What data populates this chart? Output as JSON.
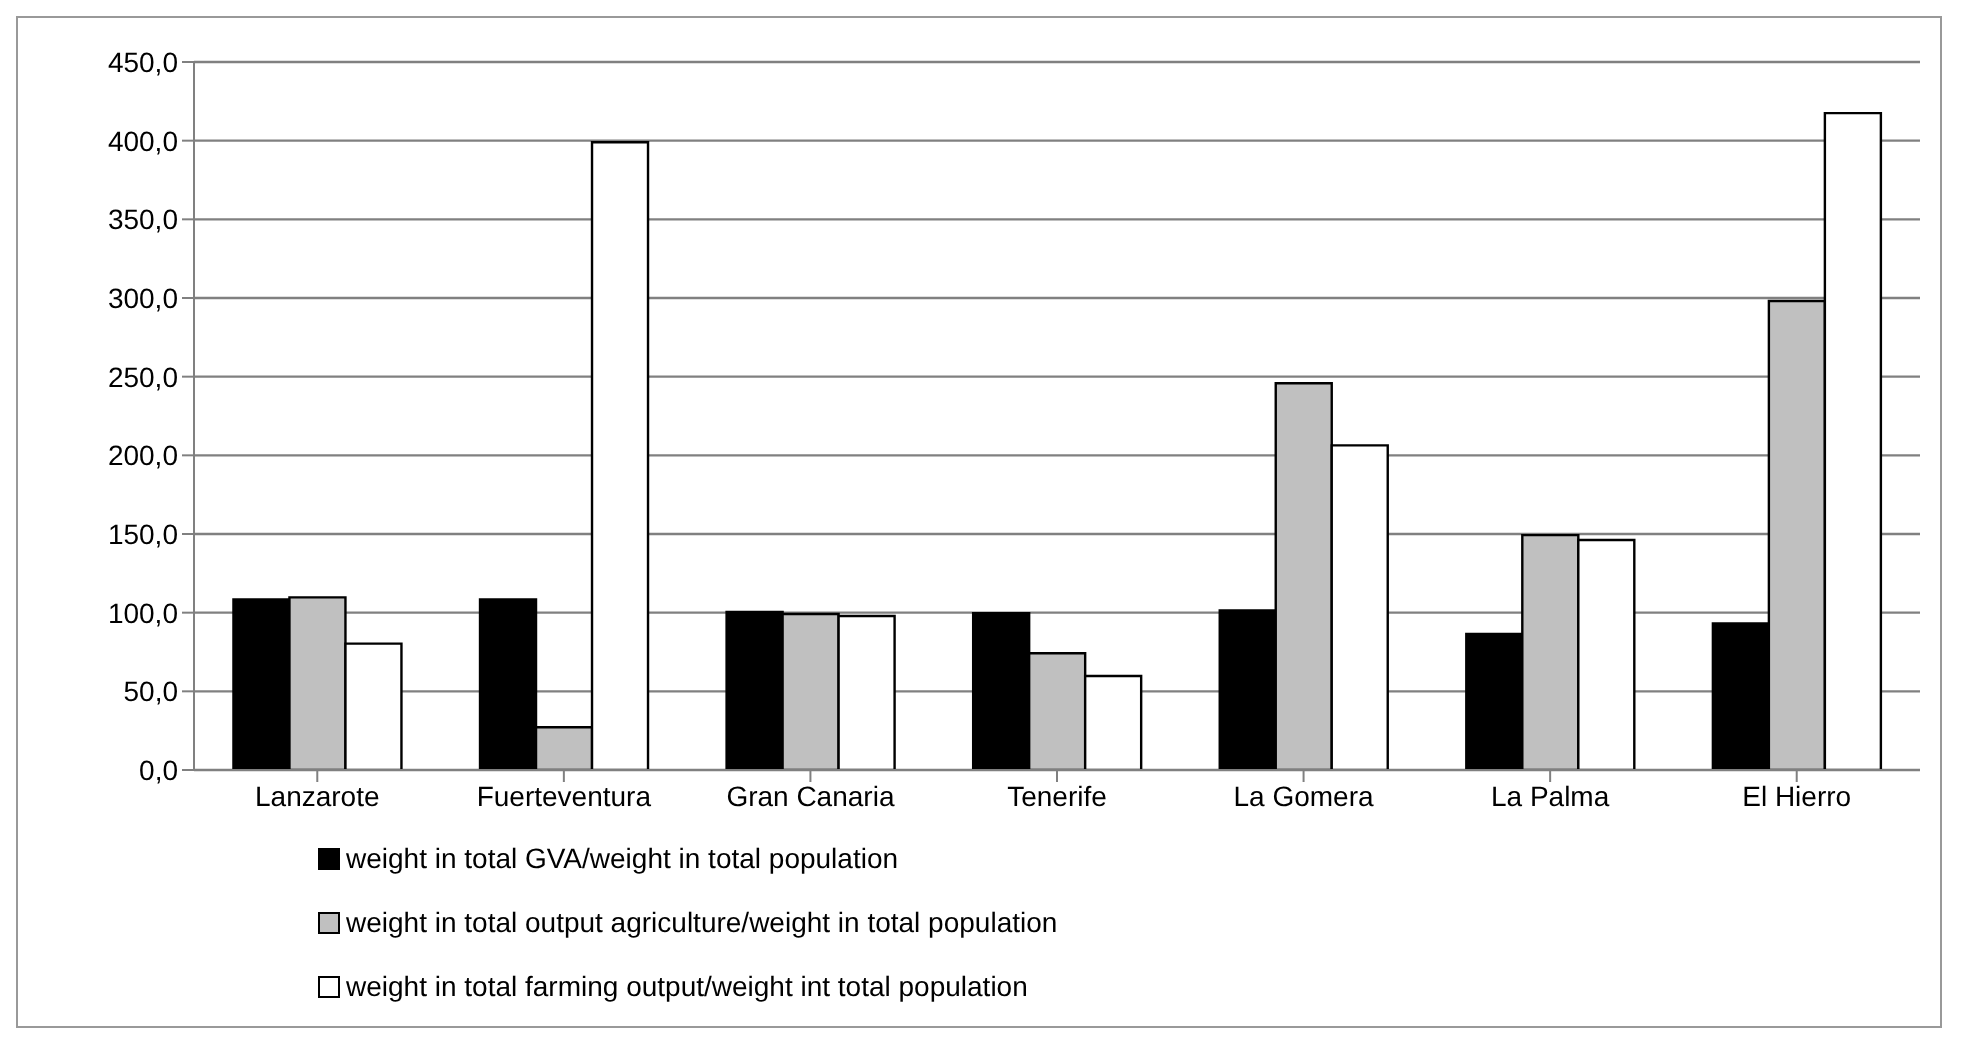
{
  "chart_data": {
    "type": "bar",
    "categories": [
      "Lanzarote",
      "Fuerteventura",
      "Gran Canaria",
      "Tenerife",
      "La Gomera",
      "La Palma",
      "El Hierro"
    ],
    "series": [
      {
        "name": "weight in total GVA/weight in total population",
        "color": "#000000",
        "values": [
          108.4,
          108.4,
          100.5,
          99.6,
          101.4,
          86.5,
          93.1
        ]
      },
      {
        "name": "weight in total output agriculture/weight in total population",
        "color": "#c0c0c0",
        "values": [
          109.7,
          27.2,
          99.2,
          74.2,
          245.8,
          149.3,
          298.1
        ]
      },
      {
        "name": "weight in total farming output/weight int total population",
        "color": "#ffffff",
        "values": [
          80.3,
          399,
          97.9,
          59.7,
          206.3,
          146.2,
          417.5
        ]
      }
    ],
    "ylim": [
      0,
      450
    ],
    "yticks": [
      {
        "value": 0,
        "label": "0,0"
      },
      {
        "value": 50,
        "label": "50,0"
      },
      {
        "value": 100,
        "label": "100,0"
      },
      {
        "value": 150,
        "label": "150,0"
      },
      {
        "value": 200,
        "label": "200,0"
      },
      {
        "value": 250,
        "label": "250,0"
      },
      {
        "value": 300,
        "label": "300,0"
      },
      {
        "value": 350,
        "label": "350,0"
      },
      {
        "value": 400,
        "label": "400,0"
      },
      {
        "value": 450,
        "label": "450,0"
      }
    ],
    "grid": "y",
    "legend": "bottom"
  }
}
